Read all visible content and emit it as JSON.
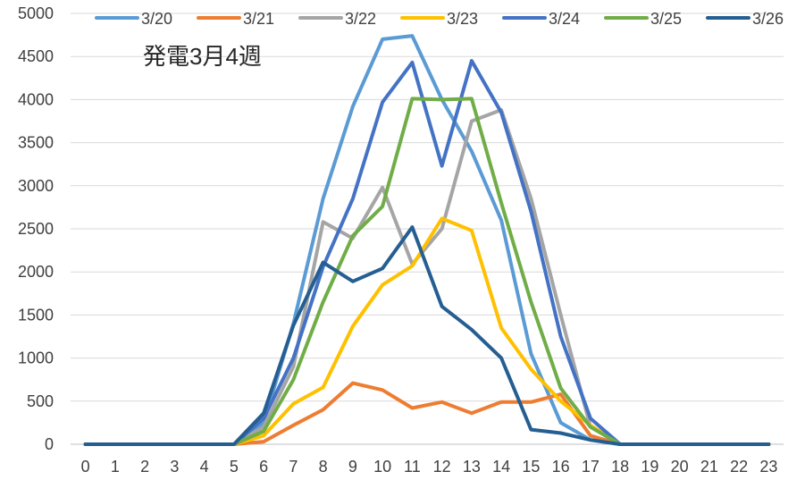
{
  "chart_data": {
    "type": "line",
    "title": "発電3月4週",
    "xlabel": "",
    "ylabel": "",
    "x": [
      0,
      1,
      2,
      3,
      4,
      5,
      6,
      7,
      8,
      9,
      10,
      11,
      12,
      13,
      14,
      15,
      16,
      17,
      18,
      19,
      20,
      21,
      22,
      23
    ],
    "ylim": [
      0,
      5000
    ],
    "yticks": [
      0,
      500,
      1000,
      1500,
      2000,
      2500,
      3000,
      3500,
      4000,
      4500,
      5000
    ],
    "grid": true,
    "legend_position": "top",
    "series": [
      {
        "name": "3/20",
        "color": "#5b9bd5",
        "values": [
          0,
          0,
          0,
          0,
          0,
          0,
          250,
          1400,
          2850,
          3920,
          4700,
          4740,
          4000,
          3400,
          2600,
          1050,
          250,
          50,
          0,
          0,
          0,
          0,
          0,
          0
        ]
      },
      {
        "name": "3/21",
        "color": "#ed7d31",
        "values": [
          0,
          0,
          0,
          0,
          0,
          0,
          30,
          220,
          400,
          710,
          630,
          420,
          490,
          360,
          490,
          490,
          580,
          100,
          0,
          0,
          0,
          0,
          0,
          0
        ]
      },
      {
        "name": "3/22",
        "color": "#a5a5a5",
        "values": [
          0,
          0,
          0,
          0,
          0,
          0,
          200,
          900,
          2580,
          2390,
          2980,
          2090,
          2500,
          3750,
          3880,
          2850,
          1500,
          200,
          0,
          0,
          0,
          0,
          0,
          0
        ]
      },
      {
        "name": "3/23",
        "color": "#ffc000",
        "values": [
          0,
          0,
          0,
          0,
          0,
          0,
          100,
          470,
          660,
          1370,
          1850,
          2070,
          2620,
          2480,
          1350,
          870,
          500,
          220,
          0,
          0,
          0,
          0,
          0,
          0
        ]
      },
      {
        "name": "3/24",
        "color": "#4472c4",
        "values": [
          0,
          0,
          0,
          0,
          0,
          0,
          300,
          1000,
          2060,
          2850,
          3970,
          4430,
          3230,
          4450,
          3850,
          2700,
          1250,
          300,
          0,
          0,
          0,
          0,
          0,
          0
        ]
      },
      {
        "name": "3/25",
        "color": "#70ad47",
        "values": [
          0,
          0,
          0,
          0,
          0,
          0,
          150,
          750,
          1650,
          2420,
          2760,
          4010,
          4000,
          4010,
          2800,
          1650,
          650,
          200,
          0,
          0,
          0,
          0,
          0,
          0
        ]
      },
      {
        "name": "3/26",
        "color": "#255e91",
        "values": [
          0,
          0,
          0,
          0,
          0,
          0,
          360,
          1380,
          2110,
          1890,
          2040,
          2520,
          1600,
          1330,
          1000,
          170,
          130,
          50,
          0,
          0,
          0,
          0,
          0,
          0
        ]
      }
    ]
  }
}
